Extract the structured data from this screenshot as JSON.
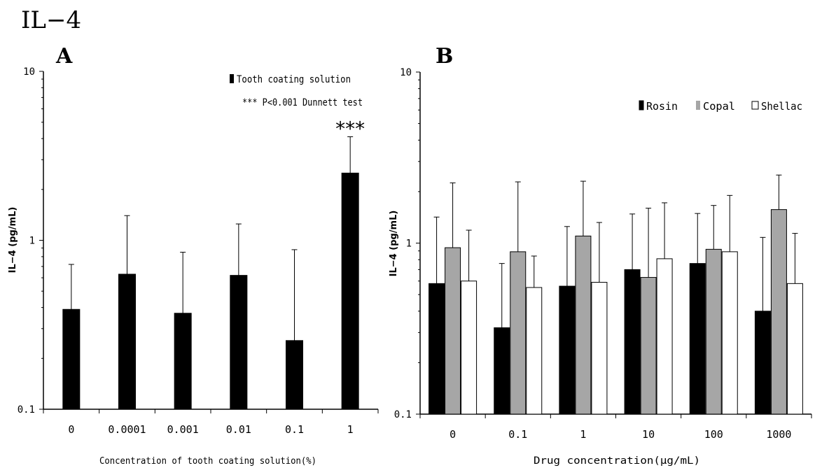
{
  "figure_title": "IL−4",
  "chart_data": [
    {
      "type": "bar",
      "panel_label": "A",
      "categories": [
        "0",
        "0.0001",
        "0.001",
        "0.01",
        "0.1",
        "1"
      ],
      "series": [
        {
          "name": "Tooth coating solution",
          "color": "#000000",
          "values": [
            0.39,
            0.63,
            0.37,
            0.62,
            0.255,
            2.5
          ],
          "error_upper": [
            0.72,
            1.4,
            0.85,
            1.25,
            0.88,
            4.1
          ]
        }
      ],
      "annotations": [
        {
          "text": "***",
          "category": "1"
        }
      ],
      "legend_note": "*** P<0.001 Dunnett test",
      "xlabel": "Concentration of tooth coating solution(%)",
      "ylabel": "IL−4 (pg/mL)",
      "yscale": "log",
      "ylim": [
        0.1,
        10
      ],
      "yticks": [
        "0.1",
        "1",
        "10"
      ],
      "grid": false,
      "legend_position": "top-right"
    },
    {
      "type": "bar",
      "panel_label": "B",
      "categories": [
        "0",
        "0.1",
        "1",
        "10",
        "100",
        "1000"
      ],
      "series": [
        {
          "name": "Rosin",
          "color": "#000000",
          "values": [
            0.58,
            0.32,
            0.56,
            0.7,
            0.76,
            0.4
          ],
          "error_upper": [
            1.42,
            0.76,
            1.25,
            1.48,
            1.49,
            1.08
          ]
        },
        {
          "name": "Copal",
          "color": "#a6a6a6",
          "values": [
            0.94,
            0.89,
            1.1,
            0.63,
            0.92,
            1.57
          ],
          "error_upper": [
            2.25,
            2.28,
            2.3,
            1.6,
            1.66,
            2.5
          ]
        },
        {
          "name": "Shellac",
          "color": "#ffffff",
          "values": [
            0.6,
            0.55,
            0.59,
            0.81,
            0.89,
            0.58
          ],
          "error_upper": [
            1.19,
            0.84,
            1.32,
            1.72,
            1.9,
            1.14
          ]
        }
      ],
      "xlabel": "Drug concentration(μg/mL)",
      "ylabel": "IL−4 (pg/mL)",
      "yscale": "log",
      "ylim": [
        0.1,
        10
      ],
      "yticks": [
        "0.1",
        "1",
        "10"
      ],
      "grid": false,
      "legend_position": "top-right"
    }
  ]
}
